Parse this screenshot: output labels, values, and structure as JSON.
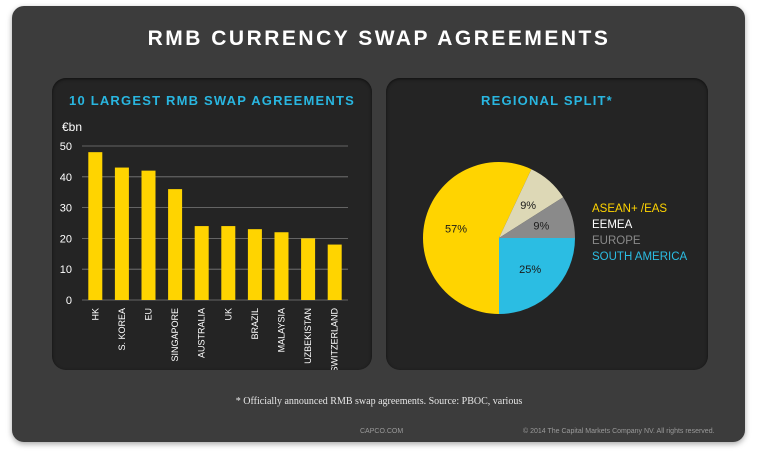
{
  "title": "RMB CURRENCY SWAP AGREEMENTS",
  "footnote": "*  Officially announced RMB swap agreements. Source: PBOC, various",
  "footer": {
    "left": "CAPCO.COM",
    "right": "© 2014 The Capital Markets Company NV. All rights reserved."
  },
  "colors": {
    "bar": "#ffd400",
    "accent": "#29b6e0"
  },
  "chart_data": [
    {
      "type": "bar",
      "title": "10 LARGEST RMB SWAP AGREEMENTS",
      "ylabel": "€bn",
      "xlabel": "",
      "categories": [
        "HK",
        "S. KOREA",
        "EU",
        "SINGAPORE",
        "AUSTRALIA",
        "UK",
        "BRAZIL",
        "MALAYSIA",
        "UZBEKISTAN",
        "SWITZERLAND"
      ],
      "values": [
        48,
        43,
        42,
        36,
        24,
        24,
        23,
        22,
        20,
        18
      ],
      "ylim": [
        0,
        50
      ],
      "yticks": [
        0,
        10,
        20,
        30,
        40,
        50
      ],
      "grid": true,
      "bar_color": "#ffd400"
    },
    {
      "type": "pie",
      "title": "REGIONAL SPLIT*",
      "slices": [
        {
          "label": "ASEAN+ /EAS",
          "value": 57,
          "display": "57%",
          "color": "#ffd400"
        },
        {
          "label": "EEMEA",
          "value": 9,
          "display": "9%",
          "color": "#ddd8b6"
        },
        {
          "label": "EUROPE",
          "value": 9,
          "display": "9%",
          "color": "#8a8a8a"
        },
        {
          "label": "SOUTH AMERICA",
          "value": 25,
          "display": "25%",
          "color": "#2bbde3"
        }
      ],
      "legend_placement": "right"
    }
  ]
}
